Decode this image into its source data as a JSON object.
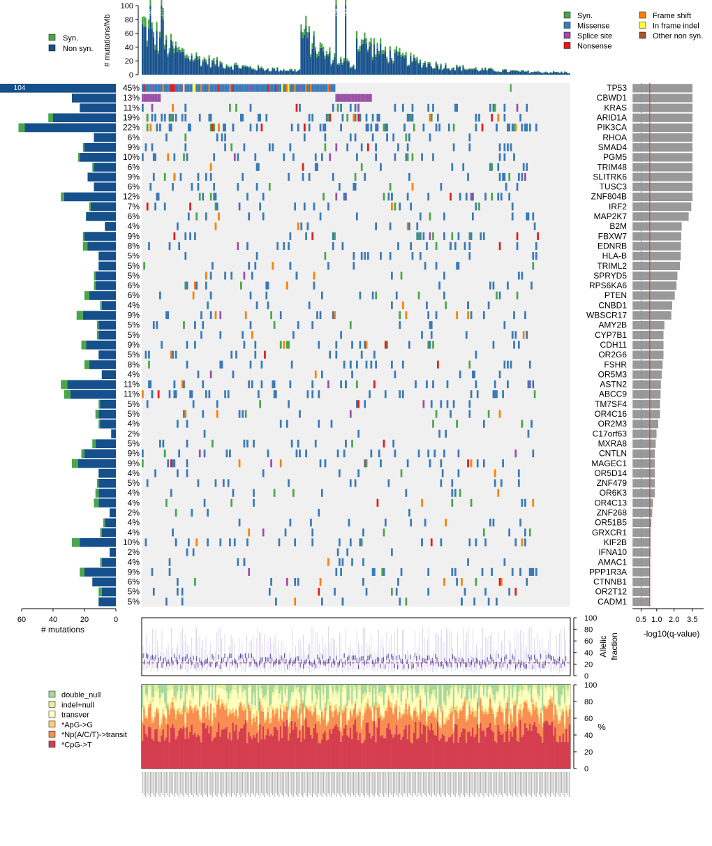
{
  "chart_data": {
    "type": "heatmap",
    "title": "",
    "genes": [
      "TP53",
      "CBWD1",
      "KRAS",
      "ARID1A",
      "PIK3CA",
      "RHOA",
      "SMAD4",
      "PGM5",
      "TRIM48",
      "SLITRK6",
      "TUSC3",
      "ZNF804B",
      "IRF2",
      "MAP2K7",
      "B2M",
      "FBXW7",
      "EDNRB",
      "HLA-B",
      "TRIML2",
      "SPRYD5",
      "RPS6KA6",
      "PTEN",
      "CNBD1",
      "WBSCR17",
      "AMY2B",
      "CYP7B1",
      "CDH11",
      "OR2G6",
      "FSHR",
      "OR5M3",
      "ASTN2",
      "ABCC9",
      "TM7SF4",
      "OR4C16",
      "OR2M3",
      "C17orf63",
      "MXRA8",
      "CNTLN",
      "MAGEC1",
      "OR5D14",
      "ZNF479",
      "OR6K3",
      "OR4C13",
      "ZNF268",
      "OR51B5",
      "GRXCR1",
      "KIF2B",
      "IFNA10",
      "AMAC1",
      "PPP1R3A",
      "CTNNB1",
      "OR2T12",
      "CADM1"
    ],
    "percents": [
      "45%",
      "13%",
      "11%",
      "19%",
      "22%",
      "6%",
      "9%",
      "10%",
      "6%",
      "9%",
      "6%",
      "12%",
      "7%",
      "6%",
      "4%",
      "9%",
      "8%",
      "5%",
      "5%",
      "5%",
      "6%",
      "6%",
      "4%",
      "9%",
      "5%",
      "5%",
      "9%",
      "5%",
      "8%",
      "4%",
      "11%",
      "11%",
      "5%",
      "5%",
      "4%",
      "2%",
      "5%",
      "9%",
      "9%",
      "4%",
      "5%",
      "4%",
      "4%",
      "2%",
      "4%",
      "4%",
      "10%",
      "2%",
      "4%",
      "9%",
      "6%",
      "5%",
      "5%"
    ],
    "nonsyn_counts": [
      104,
      28,
      23,
      40,
      58,
      14,
      20,
      23,
      14,
      18,
      14,
      33,
      16,
      19,
      7,
      20,
      18,
      11,
      11,
      13,
      13,
      17,
      9,
      21,
      11,
      11,
      19,
      11,
      17,
      9,
      31,
      29,
      10,
      11,
      10,
      3,
      13,
      20,
      24,
      11,
      11,
      11,
      11,
      4,
      7,
      9,
      23,
      4,
      9,
      20,
      15,
      9,
      11
    ],
    "syn_counts": [
      0,
      0,
      0,
      3,
      4,
      0,
      1,
      1,
      1,
      0,
      0,
      2,
      1,
      0,
      0,
      1,
      3,
      0,
      0,
      1,
      1,
      3,
      1,
      4,
      1,
      1,
      3,
      0,
      3,
      0,
      4,
      4,
      1,
      2,
      1,
      0,
      2,
      2,
      4,
      0,
      1,
      2,
      3,
      0,
      1,
      1,
      5,
      0,
      1,
      3,
      0,
      2,
      0
    ],
    "neg_log10_qvalue": [
      3.47,
      3.47,
      3.47,
      3.47,
      3.47,
      3.47,
      3.47,
      3.47,
      3.47,
      3.47,
      3.47,
      3.47,
      3.4,
      3.25,
      2.85,
      2.82,
      2.8,
      2.79,
      2.75,
      2.6,
      2.55,
      2.45,
      2.3,
      2.25,
      1.85,
      1.8,
      1.8,
      1.8,
      1.75,
      1.7,
      1.65,
      1.63,
      1.6,
      1.6,
      1.5,
      1.4,
      1.35,
      1.3,
      1.3,
      1.3,
      1.3,
      1.3,
      1.2,
      1.15,
      1.1,
      1.05,
      1.05,
      1.05,
      1.0,
      1.0,
      1.0,
      1.0,
      1.0
    ],
    "top_panel": {
      "ylabel": "# mutations/Mb",
      "yticks": [
        0,
        20,
        40,
        60,
        80,
        100
      ],
      "peak_labels": [
        "187",
        "177",
        "234",
        "248"
      ]
    },
    "left_panel": {
      "xlabel": "# mutations",
      "xticks": [
        60,
        40,
        20,
        0
      ],
      "max_label": "104"
    },
    "right_panel": {
      "xlabel": "-log10(q-value)",
      "xticks": [
        "0.5",
        "1.0",
        "2.0",
        "3.5"
      ]
    },
    "allelic_panel": {
      "ylabel_line1": "Allelic",
      "ylabel_line2": "fraction",
      "yticks": [
        0,
        20,
        40,
        60,
        80,
        100
      ],
      "median": 22
    },
    "spectrum_panel": {
      "ylabel": "%",
      "yticks": [
        0,
        20,
        40,
        60,
        80,
        100
      ]
    },
    "legend_top_left": [
      {
        "label": "Syn.",
        "color": "#4aa64a"
      },
      {
        "label": "Non syn.",
        "color": "#16508c"
      }
    ],
    "legend_top_right": [
      {
        "label": "Syn.",
        "color": "#4aa64a"
      },
      {
        "label": "Missense",
        "color": "#3a7ab8"
      },
      {
        "label": "Splice site",
        "color": "#9a4ea8"
      },
      {
        "label": "Nonsense",
        "color": "#e41a1c"
      },
      {
        "label": "Frame shift",
        "color": "#ff7f00"
      },
      {
        "label": "In frame indel",
        "color": "#ffff33"
      },
      {
        "label": "Other non syn.",
        "color": "#a65628"
      }
    ],
    "legend_spectrum": [
      {
        "label": "double_null",
        "color": "#a8d8a0"
      },
      {
        "label": "indel+null",
        "color": "#e3f29a"
      },
      {
        "label": "transver",
        "color": "#ffffc0"
      },
      {
        "label": "*ApG->G",
        "color": "#fed070"
      },
      {
        "label": "*Np(A/C/T)->transit",
        "color": "#f98e52"
      },
      {
        "label": "*CpG->T",
        "color": "#d53e4f"
      }
    ]
  },
  "colors": {
    "grid_bg": "#f0f0f0",
    "nonsyn": "#16508c",
    "syn": "#4aa64a",
    "qbar": "#999999",
    "qline_red": "#cc3333",
    "qline_purple": "#8080cc",
    "allelic_line": "#9a8acb",
    "allelic_median": "#b04070"
  }
}
